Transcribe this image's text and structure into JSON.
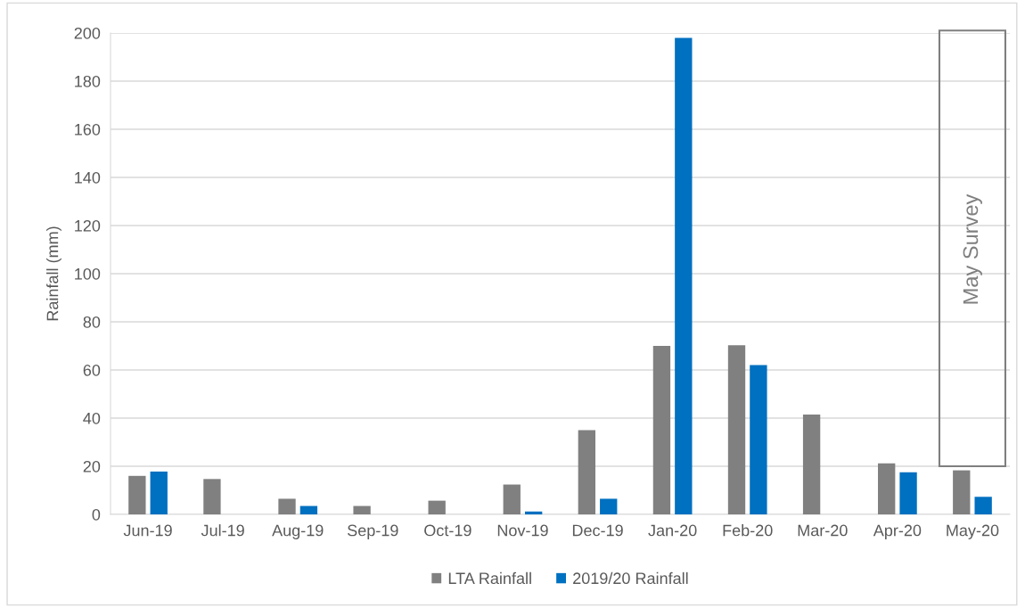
{
  "chart_data": {
    "type": "bar",
    "ylabel": "Rainfall (mm)",
    "categories": [
      "Jun-19",
      "Jul-19",
      "Aug-19",
      "Sep-19",
      "Oct-19",
      "Nov-19",
      "Dec-19",
      "Jan-20",
      "Feb-20",
      "Mar-20",
      "Apr-20",
      "May-20"
    ],
    "series": [
      {
        "name": "LTA Rainfall",
        "color": "#808080",
        "values": [
          16,
          14.7,
          6.5,
          3.5,
          5.7,
          12.4,
          35,
          70,
          70.3,
          41.5,
          21.2,
          18.3
        ]
      },
      {
        "name": "2019/20 Rainfall",
        "color": "#0070c0",
        "values": [
          17.8,
          0,
          3.5,
          0,
          0,
          1.2,
          6.5,
          198,
          62,
          0,
          17.5,
          7.3
        ]
      }
    ],
    "ylim": [
      0,
      200
    ],
    "yticks": [
      0,
      20,
      40,
      60,
      80,
      100,
      120,
      140,
      160,
      180,
      200
    ],
    "grid": "y",
    "legend": "bottom",
    "annotations": [
      "May Survey"
    ]
  }
}
